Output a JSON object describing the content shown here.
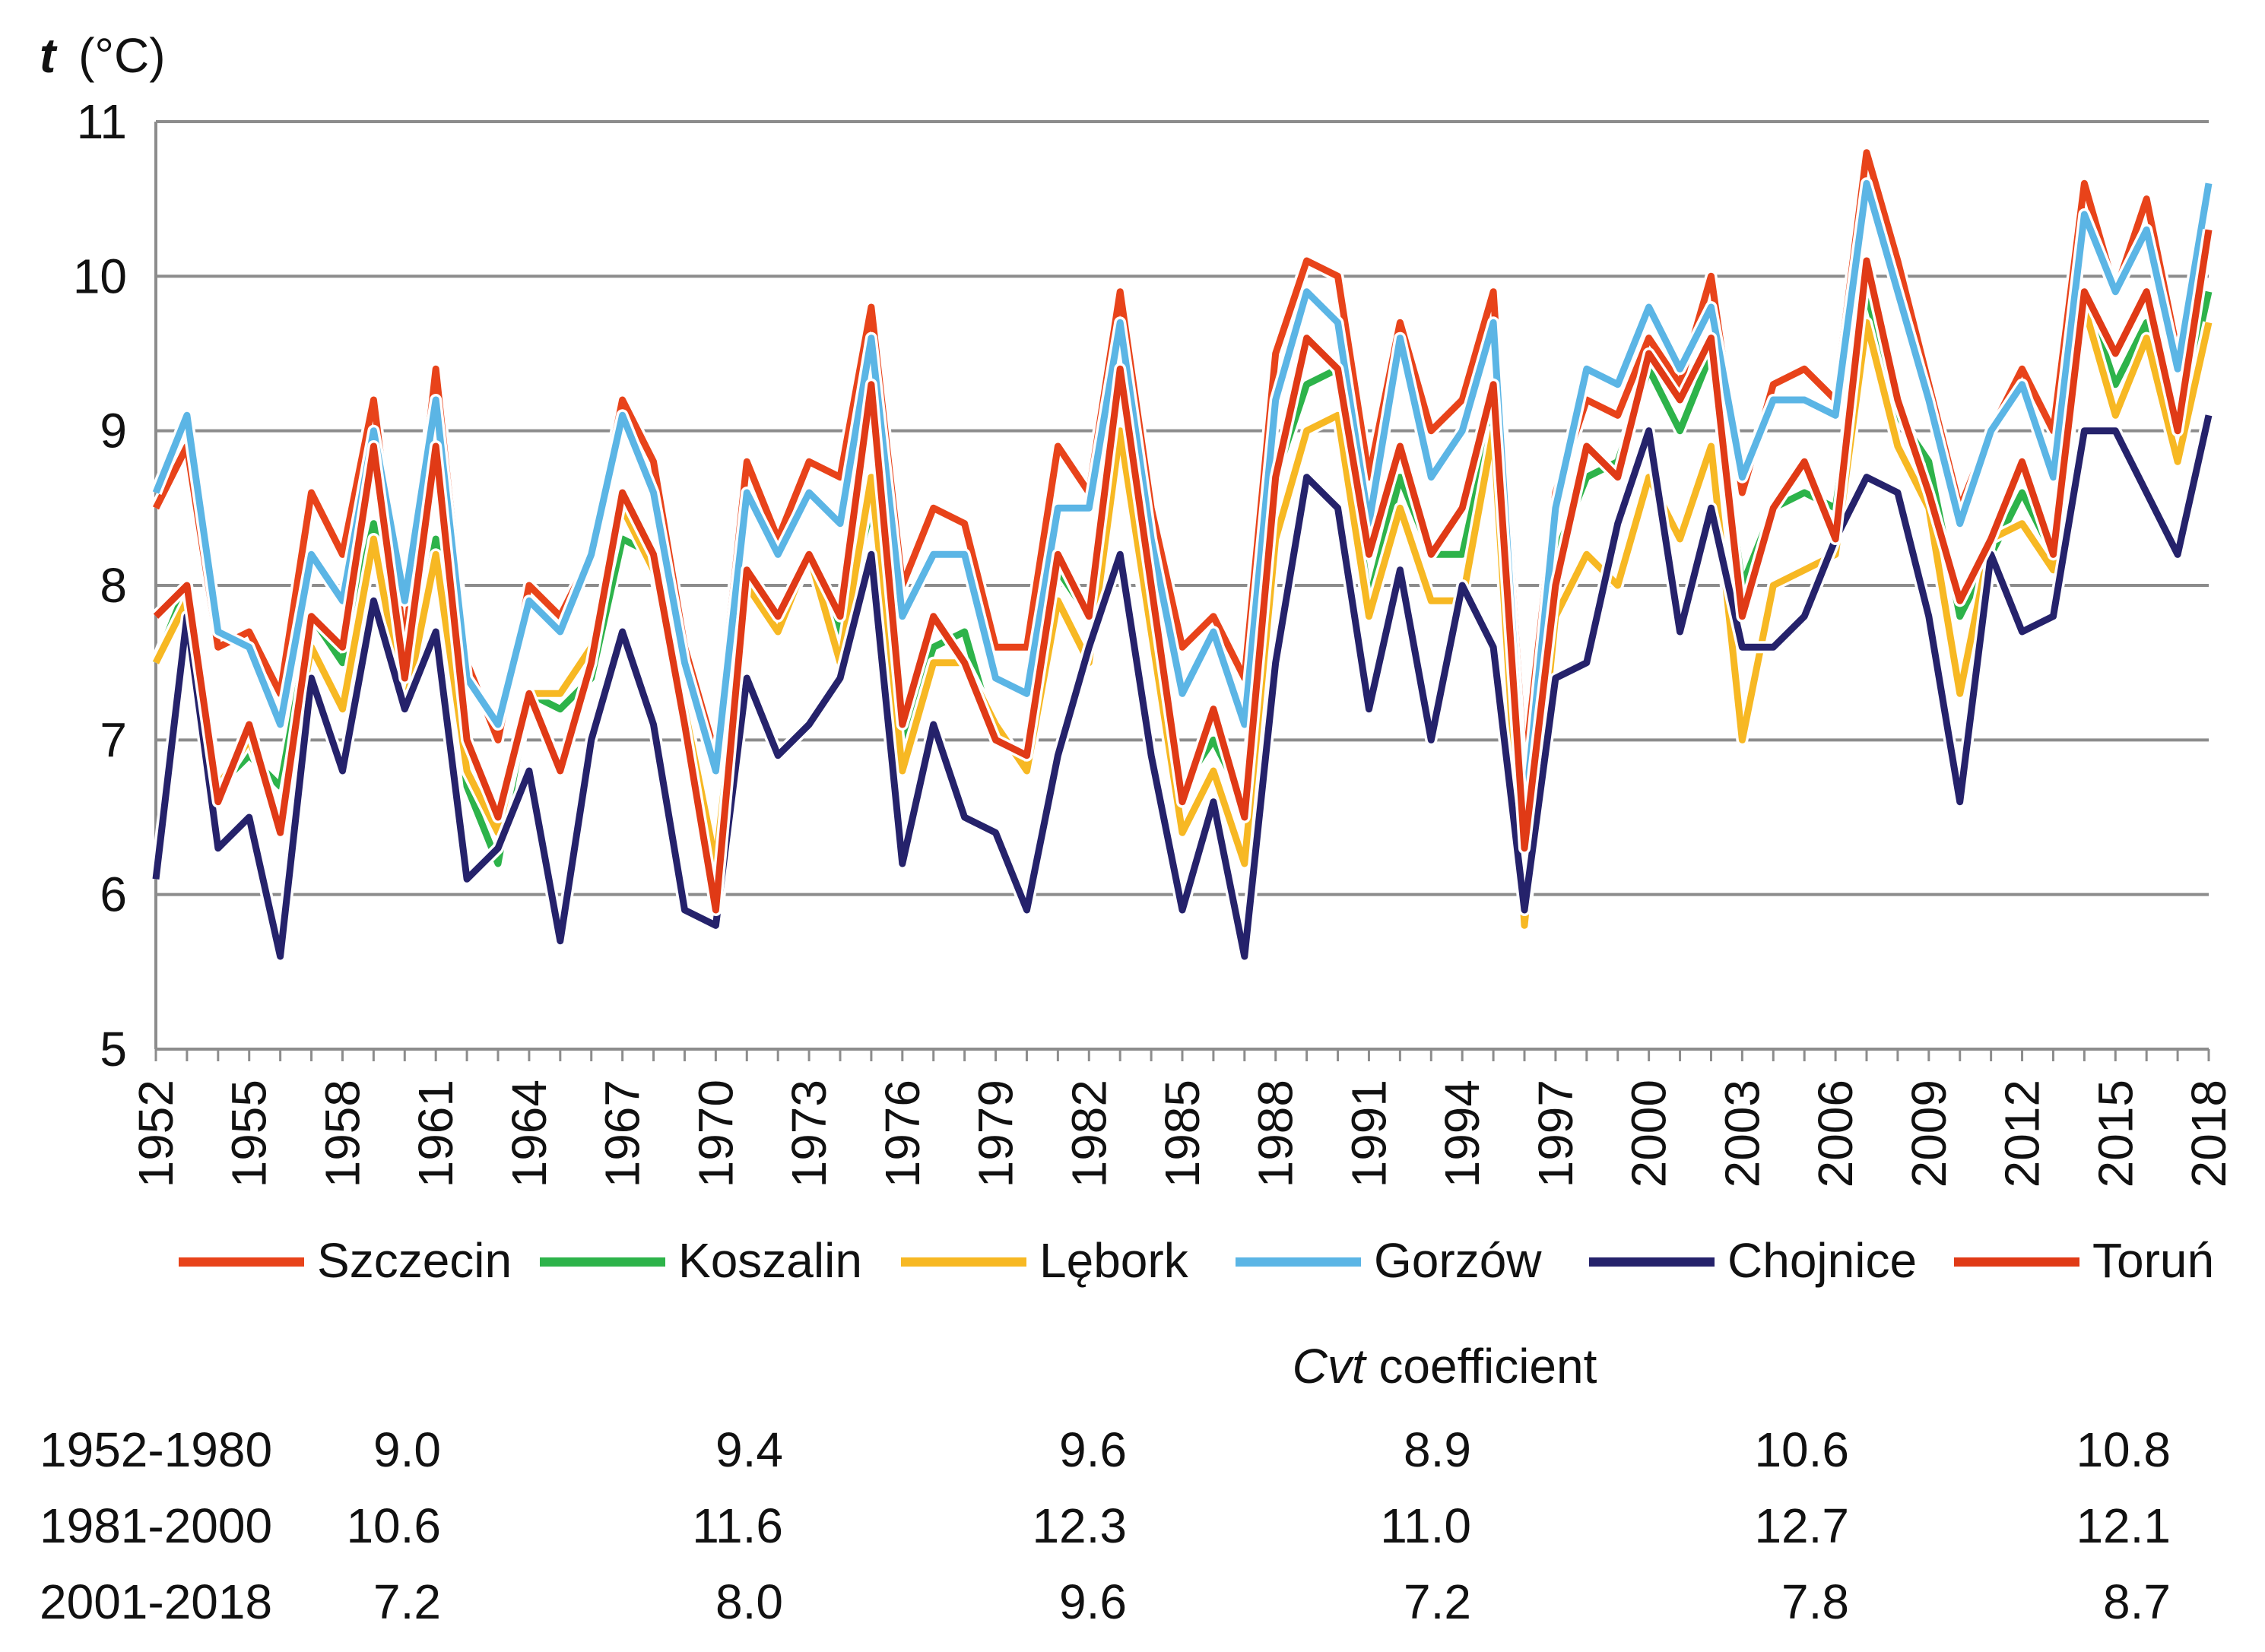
{
  "chart_data": {
    "type": "line",
    "ylabel_italic": "t",
    "ylabel_unit": "(°C)",
    "ylim": [
      5,
      11
    ],
    "yticks": [
      5,
      6,
      7,
      8,
      9,
      10,
      11
    ],
    "grid": true,
    "legend_placement": "bottom",
    "x": [
      1952,
      1953,
      1954,
      1955,
      1956,
      1957,
      1958,
      1959,
      1960,
      1961,
      1962,
      1963,
      1964,
      1965,
      1966,
      1967,
      1968,
      1969,
      1970,
      1971,
      1972,
      1973,
      1974,
      1975,
      1976,
      1977,
      1978,
      1979,
      1980,
      1981,
      1982,
      1983,
      1984,
      1985,
      1986,
      1987,
      1988,
      1989,
      1990,
      1991,
      1992,
      1993,
      1994,
      1995,
      1996,
      1997,
      1998,
      1999,
      2000,
      2001,
      2002,
      2003,
      2004,
      2005,
      2006,
      2007,
      2008,
      2009,
      2010,
      2011,
      2012,
      2013,
      2014,
      2015,
      2016,
      2017,
      2018
    ],
    "xtick_labels": [
      "1952",
      "1955",
      "1958",
      "1961",
      "1964",
      "1967",
      "1970",
      "1973",
      "1976",
      "1979",
      "1982",
      "1985",
      "1988",
      "1991",
      "1994",
      "1997",
      "2000",
      "2003",
      "2006",
      "2009",
      "2012",
      "2015",
      "2018"
    ],
    "series": [
      {
        "name": "Szczecin",
        "color": "#E8431A",
        "values": [
          8.5,
          8.9,
          7.6,
          7.7,
          7.3,
          8.6,
          8.2,
          9.2,
          7.6,
          9.4,
          7.5,
          7.0,
          8.0,
          7.8,
          8.2,
          9.2,
          8.8,
          7.6,
          6.9,
          8.8,
          8.3,
          8.8,
          8.7,
          9.8,
          8.0,
          8.5,
          8.4,
          7.6,
          7.6,
          8.9,
          8.6,
          9.9,
          8.5,
          7.6,
          7.8,
          7.4,
          9.5,
          10.1,
          10.0,
          8.7,
          9.7,
          9.0,
          9.2,
          9.9,
          6.8,
          8.6,
          9.2,
          9.1,
          9.6,
          9.3,
          10.0,
          8.6,
          9.3,
          9.4,
          9.2,
          10.8,
          10.1,
          9.3,
          8.5,
          9.0,
          9.4,
          9.0,
          10.6,
          9.9,
          10.5,
          9.5,
          10.3
        ]
      },
      {
        "name": "Koszalin",
        "color": "#2DB34A",
        "values": [
          7.5,
          8.0,
          6.7,
          6.9,
          6.7,
          7.8,
          7.5,
          8.4,
          7.2,
          8.3,
          6.7,
          6.2,
          7.3,
          7.2,
          7.4,
          8.3,
          8.2,
          7.1,
          6.2,
          8.1,
          7.8,
          8.2,
          7.7,
          8.5,
          7.0,
          7.6,
          7.7,
          7.0,
          6.9,
          8.1,
          7.8,
          8.9,
          7.6,
          6.7,
          7.0,
          6.6,
          8.7,
          9.3,
          9.4,
          7.9,
          8.7,
          8.2,
          8.2,
          9.1,
          6.2,
          8.2,
          8.7,
          8.8,
          9.4,
          9.0,
          9.5,
          8.0,
          8.5,
          8.6,
          8.5,
          9.9,
          9.1,
          8.8,
          7.8,
          8.2,
          8.6,
          8.2,
          9.9,
          9.3,
          9.7,
          9.0,
          9.9
        ]
      },
      {
        "name": "Lębork",
        "color": "#F7B823",
        "values": [
          7.5,
          7.9,
          6.7,
          7.0,
          6.5,
          7.6,
          7.2,
          8.3,
          7.2,
          8.2,
          6.8,
          6.4,
          7.3,
          7.3,
          7.6,
          8.5,
          8.1,
          7.2,
          6.2,
          8.0,
          7.7,
          8.2,
          7.5,
          8.7,
          6.8,
          7.5,
          7.5,
          7.1,
          6.8,
          7.9,
          7.5,
          9.0,
          7.7,
          6.4,
          6.8,
          6.2,
          8.3,
          9.0,
          9.1,
          7.8,
          8.5,
          7.9,
          7.9,
          9.0,
          5.8,
          7.8,
          8.2,
          8.0,
          8.7,
          8.3,
          8.9,
          7.0,
          8.0,
          8.1,
          8.2,
          9.7,
          8.9,
          8.5,
          7.3,
          8.3,
          8.4,
          8.1,
          9.8,
          9.1,
          9.6,
          8.8,
          9.7
        ]
      },
      {
        "name": "Gorzów",
        "color": "#5BB5E5",
        "values": [
          8.6,
          9.1,
          7.7,
          7.6,
          7.1,
          8.2,
          7.9,
          9.0,
          7.9,
          9.2,
          7.4,
          7.1,
          7.9,
          7.7,
          8.2,
          9.1,
          8.6,
          7.5,
          6.8,
          8.6,
          8.2,
          8.6,
          8.4,
          9.6,
          7.8,
          8.2,
          8.2,
          7.4,
          7.3,
          8.5,
          8.5,
          9.7,
          8.3,
          7.3,
          7.7,
          7.1,
          9.2,
          9.9,
          9.7,
          8.4,
          9.6,
          8.7,
          9.0,
          9.7,
          6.5,
          8.5,
          9.4,
          9.3,
          9.8,
          9.4,
          9.8,
          8.7,
          9.2,
          9.2,
          9.1,
          10.6,
          9.9,
          9.2,
          8.4,
          9.0,
          9.3,
          8.7,
          10.4,
          9.9,
          10.3,
          9.4,
          10.6
        ]
      },
      {
        "name": "Chojnice",
        "color": "#25226B",
        "values": [
          6.1,
          7.8,
          6.3,
          6.5,
          5.6,
          7.4,
          6.8,
          7.9,
          7.2,
          7.7,
          6.1,
          6.3,
          6.8,
          5.7,
          7.0,
          7.7,
          7.1,
          5.9,
          5.8,
          7.4,
          6.9,
          7.1,
          7.4,
          8.2,
          6.2,
          7.1,
          6.5,
          6.4,
          5.9,
          6.9,
          7.6,
          8.2,
          6.9,
          5.9,
          6.6,
          5.6,
          7.5,
          8.7,
          8.5,
          7.2,
          8.1,
          7.0,
          8.0,
          7.6,
          5.9,
          7.4,
          7.5,
          8.4,
          9.0,
          7.7,
          8.5,
          7.6,
          7.6,
          7.8,
          8.3,
          8.7,
          8.6,
          7.8,
          6.6,
          8.2,
          7.7,
          7.8,
          9.0,
          9.0,
          8.6,
          8.2,
          9.1
        ]
      },
      {
        "name": "Toruń",
        "color": "#E03A16",
        "values": [
          7.8,
          8.0,
          6.6,
          7.1,
          6.4,
          7.8,
          7.6,
          8.9,
          7.4,
          8.9,
          7.0,
          6.5,
          7.3,
          6.8,
          7.5,
          8.6,
          8.2,
          7.1,
          5.9,
          8.1,
          7.8,
          8.2,
          7.8,
          9.3,
          7.1,
          7.8,
          7.5,
          7.0,
          6.9,
          8.2,
          7.8,
          9.4,
          8.0,
          6.6,
          7.2,
          6.5,
          8.7,
          9.6,
          9.4,
          8.2,
          8.9,
          8.2,
          8.5,
          9.3,
          6.3,
          8.0,
          8.9,
          8.7,
          9.5,
          9.2,
          9.6,
          7.8,
          8.5,
          8.8,
          8.3,
          10.1,
          9.2,
          8.6,
          7.9,
          8.3,
          8.8,
          8.2,
          9.9,
          9.5,
          9.9,
          9.0,
          10.3
        ]
      }
    ]
  },
  "cvt": {
    "title_italic": "Cvt",
    "title_rest": "coefficient",
    "rows": [
      {
        "period": "1952-1980",
        "values": [
          "9.0",
          "9.4",
          "9.6",
          "8.9",
          "10.6",
          "10.8"
        ]
      },
      {
        "period": "1981-2000",
        "values": [
          "10.6",
          "11.6",
          "12.3",
          "11.0",
          "12.7",
          "12.1"
        ]
      },
      {
        "period": "2001-2018",
        "values": [
          "7.2",
          "8.0",
          "9.6",
          "7.2",
          "7.8",
          "8.7"
        ]
      }
    ]
  }
}
